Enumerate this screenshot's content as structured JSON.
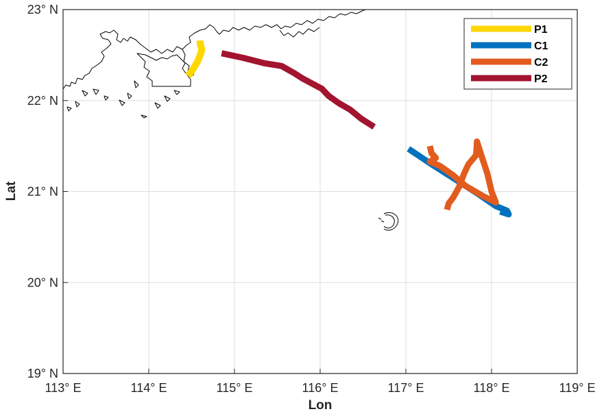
{
  "chart_data": {
    "type": "line",
    "title": "",
    "xlabel": "Lon",
    "ylabel": "Lat",
    "xlim": [
      113,
      119
    ],
    "ylim": [
      19,
      23
    ],
    "grid": true,
    "legend_placement": "top-right",
    "x_ticks": [
      113,
      114,
      115,
      116,
      117,
      118,
      119
    ],
    "y_ticks": [
      19,
      20,
      21,
      22,
      23
    ],
    "x_tick_labels": [
      "113° E",
      "114° E",
      "115° E",
      "116° E",
      "117° E",
      "118° E",
      "119° E"
    ],
    "y_tick_labels": [
      "19° N",
      "20° N",
      "21° N",
      "22° N",
      "23° N"
    ],
    "series": [
      {
        "name": "P1",
        "color": "#FFD700",
        "points": [
          [
            114.46,
            22.27
          ],
          [
            114.52,
            22.35
          ],
          [
            114.57,
            22.43
          ],
          [
            114.6,
            22.5
          ],
          [
            114.62,
            22.56
          ],
          [
            114.6,
            22.62
          ],
          [
            114.6,
            22.66
          ]
        ]
      },
      {
        "name": "C1",
        "color": "#0072BD",
        "points": [
          [
            117.03,
            21.47
          ],
          [
            117.3,
            21.3
          ],
          [
            117.6,
            21.12
          ],
          [
            117.85,
            20.97
          ],
          [
            118.05,
            20.84
          ],
          [
            118.18,
            20.79
          ],
          [
            118.2,
            20.75
          ],
          [
            118.1,
            20.78
          ]
        ]
      },
      {
        "name": "C2",
        "color": "#E15C1E",
        "points": [
          [
            117.28,
            21.5
          ],
          [
            117.3,
            21.42
          ],
          [
            117.35,
            21.37
          ],
          [
            117.28,
            21.33
          ],
          [
            117.4,
            21.28
          ],
          [
            117.55,
            21.18
          ],
          [
            117.7,
            21.06
          ],
          [
            117.9,
            20.95
          ],
          [
            118.05,
            20.88
          ],
          [
            118.0,
            21.0
          ],
          [
            117.95,
            21.2
          ],
          [
            117.88,
            21.4
          ],
          [
            117.83,
            21.55
          ],
          [
            117.82,
            21.4
          ],
          [
            117.73,
            21.3
          ],
          [
            117.68,
            21.2
          ],
          [
            117.62,
            21.05
          ],
          [
            117.55,
            20.93
          ],
          [
            117.5,
            20.87
          ],
          [
            117.48,
            20.8
          ]
        ]
      },
      {
        "name": "P2",
        "color": "#A2142F",
        "points": [
          [
            114.85,
            22.52
          ],
          [
            115.1,
            22.47
          ],
          [
            115.35,
            22.41
          ],
          [
            115.55,
            22.38
          ],
          [
            115.7,
            22.3
          ],
          [
            115.8,
            22.24
          ],
          [
            115.92,
            22.18
          ],
          [
            116.02,
            22.13
          ],
          [
            116.1,
            22.05
          ],
          [
            116.22,
            21.97
          ],
          [
            116.35,
            21.9
          ],
          [
            116.48,
            21.8
          ],
          [
            116.63,
            21.71
          ]
        ]
      }
    ]
  },
  "map": {
    "coastline_color": "#000000"
  }
}
